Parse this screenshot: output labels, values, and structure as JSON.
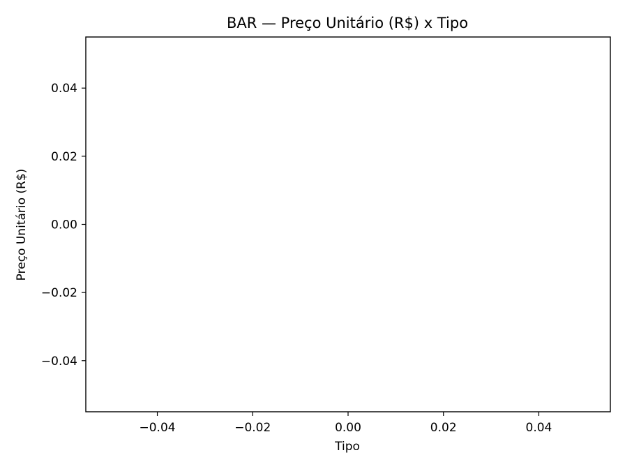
{
  "chart_data": {
    "type": "bar",
    "title": "BAR — Preço Unitário (R$) x Tipo",
    "xlabel": "Tipo",
    "ylabel": "Preço Unitário (R$)",
    "categories": [],
    "values": [],
    "xlim": [
      -0.055,
      0.055
    ],
    "ylim": [
      -0.055,
      0.055
    ],
    "xticks": [
      -0.04,
      -0.02,
      0.0,
      0.02,
      0.04
    ],
    "xtick_labels": [
      "−0.04",
      "−0.02",
      "0.00",
      "0.02",
      "0.04"
    ],
    "yticks": [
      0.04,
      0.02,
      0.0,
      -0.02,
      -0.04
    ],
    "ytick_labels": [
      "0.04",
      "0.02",
      "0.00",
      "−0.02",
      "−0.04"
    ],
    "grid": false,
    "legend": "none"
  }
}
